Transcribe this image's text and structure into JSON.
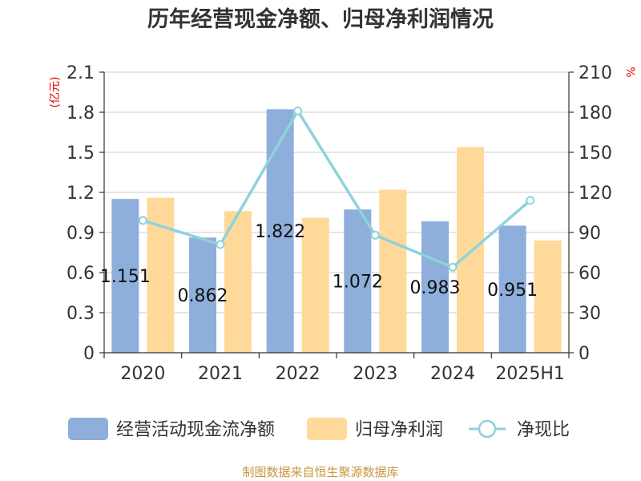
{
  "chart_data": {
    "type": "bar",
    "title": "历年经营现金净额、归母净利润情况",
    "categories": [
      "2020",
      "2021",
      "2022",
      "2023",
      "2024",
      "2025H1"
    ],
    "y_left": {
      "unit": "(亿元)",
      "ylim": [
        0,
        2.1
      ],
      "ticks": [
        "0",
        "0.3",
        "0.6",
        "0.9",
        "1.2",
        "1.5",
        "1.8",
        "2.1"
      ]
    },
    "y_right": {
      "unit": "%",
      "ylim": [
        0,
        210
      ],
      "ticks": [
        "0",
        "30",
        "60",
        "90",
        "120",
        "150",
        "180",
        "210"
      ]
    },
    "series": [
      {
        "name": "经营活动现金流净额",
        "type": "bar",
        "axis": "left",
        "color": "#8eaedb",
        "values": [
          1.151,
          0.862,
          1.822,
          1.072,
          0.983,
          0.951
        ],
        "labels": [
          "1.151",
          "0.862",
          "1.822",
          "1.072",
          "0.983",
          "0.951"
        ]
      },
      {
        "name": "归母净利润",
        "type": "bar",
        "axis": "left",
        "color": "#ffd99a",
        "values": [
          1.16,
          1.06,
          1.01,
          1.22,
          1.54,
          0.84
        ]
      },
      {
        "name": "净现比",
        "type": "line",
        "axis": "right",
        "color": "#8dd3da",
        "values": [
          99,
          81,
          181,
          88,
          64,
          114
        ]
      }
    ],
    "grid": true,
    "legend": "bottom"
  },
  "source": "制图数据来自恒生聚源数据库"
}
